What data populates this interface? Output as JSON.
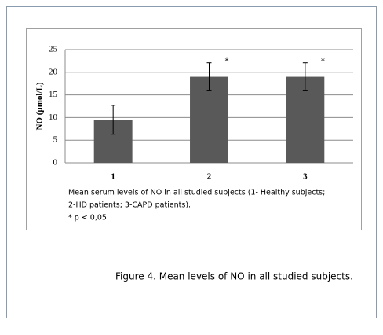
{
  "chart_data": {
    "type": "bar",
    "ylabel": "NO (µmol/L)",
    "categories": [
      "1",
      "2",
      "3"
    ],
    "values": [
      9.5,
      19,
      19
    ],
    "errors": [
      3.2,
      3.1,
      3.1
    ],
    "significance": [
      null,
      "*",
      "*"
    ],
    "color": "#595959",
    "ylim": [
      0,
      25
    ],
    "yticks": [
      0,
      5,
      10,
      15,
      20,
      25
    ],
    "grid": true,
    "notes": [
      "Mean serum levels of NO in all studied subjects (1- Healthy subjects;",
      "2-HD patients; 3-CAPD patients).",
      "* p < 0,05"
    ]
  },
  "caption": "Figure 4. Mean levels of NO in all studied subjects."
}
